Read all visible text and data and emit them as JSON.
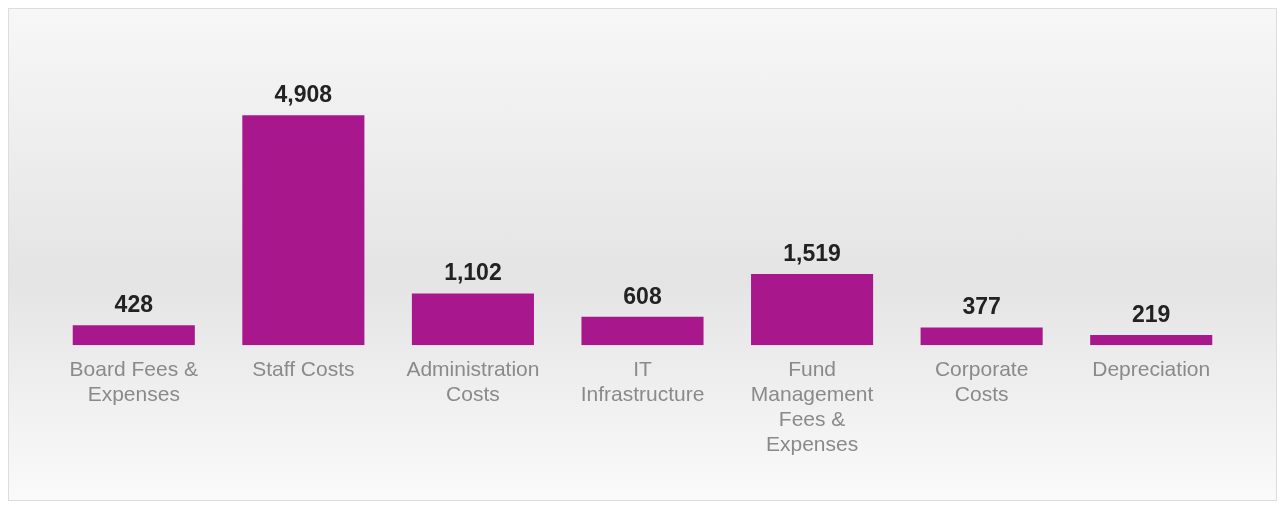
{
  "chart_data": {
    "type": "bar",
    "categories": [
      "Board Fees & Expenses",
      "Staff Costs",
      "Administration Costs",
      "IT Infrastructure",
      "Fund Management Fees & Expenses",
      "Corporate Costs",
      "Depreciation"
    ],
    "values": [
      428,
      4908,
      1102,
      608,
      1519,
      377,
      219
    ],
    "color": "#a8188c",
    "value_labels": [
      "428",
      "4,908",
      "1,102",
      "608",
      "1,519",
      "377",
      "219"
    ],
    "grid": false,
    "legend": false
  }
}
